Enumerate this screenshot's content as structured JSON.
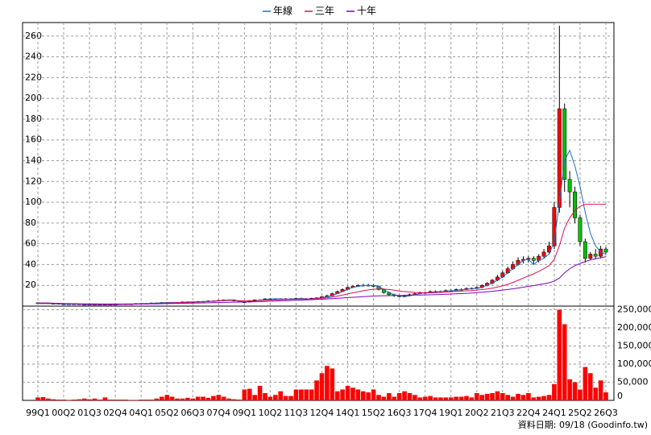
{
  "chart_data": {
    "type": "candlestick",
    "categories": [
      "99Q1",
      null,
      null,
      null,
      null,
      "00Q2",
      null,
      null,
      null,
      null,
      "01Q3",
      null,
      null,
      null,
      null,
      "02Q4",
      null,
      null,
      null,
      null,
      "04Q1",
      null,
      null,
      null,
      null,
      "05Q2",
      null,
      null,
      null,
      null,
      "06Q3",
      null,
      null,
      null,
      null,
      "07Q4",
      null,
      null,
      null,
      null,
      "09Q1",
      null,
      null,
      null,
      null,
      "10Q2",
      null,
      null,
      null,
      null,
      "11Q3",
      null,
      null,
      null,
      null,
      "12Q4",
      null,
      null,
      null,
      null,
      "14Q1",
      null,
      null,
      null,
      null,
      "15Q2",
      null,
      null,
      null,
      null,
      "16Q3",
      null,
      null,
      null,
      null,
      "17Q4",
      null,
      null,
      null,
      null,
      "19Q1",
      null,
      null,
      null,
      null,
      "20Q2",
      null,
      null,
      null,
      null,
      "21Q3",
      null,
      null,
      null,
      null,
      "22Q4",
      null,
      null,
      null,
      null,
      "24Q1",
      null,
      null,
      null,
      null,
      "25Q2",
      null,
      null,
      null,
      null,
      "26Q3"
    ],
    "open": [
      3.2,
      3,
      3,
      2.5,
      2.5,
      2,
      2,
      2,
      2,
      1.5,
      1.5,
      1.5,
      1.5,
      1.5,
      1.5,
      1.5,
      1.5,
      2,
      2,
      2,
      2.5,
      2.5,
      2.5,
      3,
      3,
      3.5,
      3.5,
      3.5,
      3.5,
      4,
      4,
      4,
      4.5,
      4.5,
      5,
      5,
      5.5,
      6,
      6,
      5,
      4,
      4,
      5,
      6,
      6,
      7,
      7,
      7,
      6.5,
      7,
      7,
      7.5,
      7,
      7,
      7.5,
      8,
      9,
      10,
      12,
      14,
      16,
      18,
      19,
      20,
      20,
      20,
      19,
      16,
      13,
      11,
      10,
      9,
      10,
      11,
      12,
      13,
      13,
      14,
      14,
      14,
      15,
      15,
      16,
      16,
      17,
      17,
      18,
      20,
      22,
      25,
      28,
      32,
      36,
      40,
      44,
      45,
      46,
      44,
      48,
      52,
      58,
      95,
      190,
      122,
      110,
      85,
      62,
      46,
      50,
      48,
      55
    ],
    "high": [
      3.5,
      3.3,
      3.3,
      2.8,
      2.8,
      2.3,
      2.3,
      2.3,
      2.3,
      1.8,
      1.8,
      1.8,
      1.8,
      1.8,
      1.8,
      1.8,
      2.3,
      2.3,
      2.3,
      2.8,
      2.9,
      2.9,
      3.4,
      3.4,
      3.9,
      3.9,
      3.9,
      3.9,
      4.4,
      4.4,
      4.4,
      4.9,
      4.9,
      5.4,
      5.4,
      5.9,
      6.4,
      6.4,
      6.4,
      5.4,
      4.6,
      5.6,
      6.6,
      6.6,
      7.6,
      7.6,
      7.6,
      7.6,
      7.6,
      7.6,
      8.1,
      8.1,
      7.6,
      8.1,
      8.6,
      9.6,
      11,
      13,
      15,
      17,
      19,
      20,
      21,
      21.5,
      21.5,
      21,
      20,
      17,
      14,
      12,
      11,
      11,
      12,
      13,
      14,
      14,
      15,
      15,
      15,
      16,
      16,
      17,
      17,
      18,
      18,
      19,
      21,
      23,
      26,
      30,
      34,
      38,
      43,
      47,
      48,
      48,
      48,
      50,
      55,
      62,
      100,
      270,
      195,
      130,
      115,
      88,
      65,
      52,
      55,
      58,
      57
    ],
    "low": [
      2.7,
      2.7,
      2.2,
      2.2,
      1.7,
      1.7,
      1.7,
      1.7,
      1.2,
      1.2,
      1.2,
      1.2,
      1.2,
      1.2,
      1.2,
      1.2,
      1.2,
      1.7,
      1.7,
      1.7,
      2.1,
      2.1,
      2.1,
      2.6,
      2.6,
      3.1,
      3.1,
      3.1,
      3.1,
      3.6,
      3.6,
      3.6,
      4.1,
      4.1,
      4.6,
      4.6,
      5.1,
      5.6,
      4.6,
      3.6,
      3.4,
      3.4,
      4.4,
      5.4,
      5.4,
      6.4,
      6.4,
      5.9,
      5.9,
      6.4,
      6.4,
      6.4,
      6.4,
      6.4,
      6.9,
      7.4,
      8.5,
      9.5,
      11.5,
      13.5,
      15.5,
      17.5,
      18.5,
      19,
      19,
      18,
      15,
      12,
      10,
      9,
      8.5,
      8.5,
      9.5,
      10.5,
      11.5,
      12,
      12.5,
      13,
      13,
      13.5,
      14,
      14.5,
      15,
      15.5,
      16,
      16.5,
      17,
      19,
      21,
      24,
      27,
      31,
      35,
      39,
      41,
      42,
      40,
      42,
      46,
      50,
      55,
      90,
      110,
      95,
      80,
      58,
      42,
      44,
      45,
      46,
      50
    ],
    "close": [
      3,
      3,
      2.5,
      2.5,
      2,
      2,
      2,
      2,
      1.5,
      1.5,
      1.5,
      1.5,
      1.5,
      1.5,
      1.5,
      1.5,
      2,
      2,
      2,
      2.5,
      2.5,
      2.5,
      3,
      3,
      3.5,
      3.5,
      3.5,
      3.5,
      4,
      4,
      4,
      4.5,
      4.5,
      5,
      5,
      5.5,
      6,
      6,
      5,
      4,
      4,
      5,
      6,
      6,
      7,
      7,
      7,
      6.5,
      7,
      7,
      7.5,
      7,
      7,
      7.5,
      8,
      9,
      10,
      12,
      14,
      16,
      18,
      19,
      20,
      20,
      20,
      19,
      16,
      13,
      11,
      10,
      9,
      10,
      11,
      12,
      13,
      13,
      14,
      14,
      14,
      15,
      15,
      16,
      16,
      17,
      17,
      18,
      20,
      22,
      25,
      28,
      32,
      36,
      40,
      44,
      45,
      46,
      44,
      48,
      52,
      58,
      95,
      190,
      122,
      110,
      85,
      62,
      46,
      50,
      48,
      55,
      52
    ],
    "up_color": "#ff0000",
    "down_color": "#00c000",
    "series": [
      {
        "name": "年線",
        "color": "#1f6fc5",
        "values": [
          3.2,
          3,
          3,
          2.5,
          2.5,
          2,
          2,
          2,
          2,
          1.5,
          1.5,
          1.5,
          1.5,
          1.5,
          1.5,
          1.5,
          1.5,
          2,
          2,
          2,
          2.5,
          2.5,
          2.5,
          3,
          3,
          3.5,
          3.5,
          3.5,
          3.5,
          4,
          4,
          4,
          4.5,
          4.5,
          5,
          5,
          5.5,
          6,
          6,
          5,
          4,
          4,
          5,
          6,
          6,
          7,
          7,
          7,
          6.5,
          7,
          7,
          7.5,
          7,
          7,
          7.5,
          8,
          9,
          10,
          12,
          14,
          16,
          18,
          19,
          20,
          20,
          20,
          19,
          16,
          13,
          11,
          10,
          9,
          10,
          11,
          12,
          13,
          13,
          14,
          14,
          14,
          15,
          15,
          16,
          16,
          17,
          17,
          18,
          20,
          22,
          25,
          28,
          32,
          36,
          40,
          44,
          45,
          40,
          44,
          46,
          50,
          62,
          100,
          140,
          150,
          135,
          115,
          90,
          70,
          58,
          52,
          50
        ]
      },
      {
        "name": "三年",
        "color": "#e0105a",
        "values": [
          3,
          3,
          3,
          2.8,
          2.7,
          2.5,
          2.4,
          2.3,
          2.1,
          2,
          1.9,
          1.8,
          1.7,
          1.6,
          1.6,
          1.6,
          1.7,
          1.7,
          1.8,
          1.9,
          2,
          2.1,
          2.3,
          2.5,
          2.7,
          2.9,
          3.1,
          3.3,
          3.5,
          3.7,
          3.9,
          4.1,
          4.3,
          4.5,
          4.7,
          5,
          5.2,
          5.4,
          5.4,
          5.3,
          5.2,
          5.2,
          5.3,
          5.4,
          5.6,
          5.8,
          6,
          6.2,
          6.4,
          6.5,
          6.7,
          6.8,
          6.9,
          7,
          7.2,
          7.5,
          8,
          8.7,
          9.6,
          10.6,
          11.7,
          12.8,
          13.8,
          14.8,
          15.6,
          16.2,
          16.5,
          16.4,
          16,
          15.3,
          14.6,
          14,
          13.6,
          13.2,
          13,
          12.8,
          12.8,
          13,
          13.2,
          13.5,
          13.8,
          14.1,
          14.4,
          14.7,
          15,
          15.4,
          15.9,
          16.5,
          17.3,
          18.3,
          19.5,
          21,
          22.8,
          24.8,
          27,
          29,
          31,
          33.5,
          36,
          39,
          45,
          58,
          75,
          85,
          92,
          96,
          98,
          98,
          98,
          98,
          98
        ]
      },
      {
        "name": "十年",
        "color": "#8000c0",
        "values": [
          2.5,
          2.5,
          2.5,
          2.5,
          2.4,
          2.4,
          2.3,
          2.3,
          2.2,
          2.2,
          2.1,
          2.1,
          2,
          2,
          2,
          2,
          2,
          2,
          2,
          2,
          2.1,
          2.1,
          2.2,
          2.2,
          2.3,
          2.4,
          2.5,
          2.6,
          2.7,
          2.8,
          2.9,
          3,
          3.1,
          3.2,
          3.3,
          3.4,
          3.6,
          3.7,
          3.8,
          3.9,
          4,
          4.1,
          4.2,
          4.3,
          4.5,
          4.7,
          4.9,
          5.1,
          5.3,
          5.4,
          5.6,
          5.8,
          6,
          6.2,
          6.4,
          6.6,
          6.9,
          7.2,
          7.5,
          7.8,
          8.2,
          8.5,
          8.8,
          9.1,
          9.4,
          9.7,
          9.9,
          10,
          10.1,
          10.2,
          10.3,
          10.4,
          10.5,
          10.6,
          10.7,
          10.8,
          10.9,
          11,
          11.2,
          11.4,
          11.6,
          11.8,
          12,
          12.3,
          12.6,
          13,
          13.4,
          13.8,
          14.3,
          14.8,
          15.4,
          16,
          16.7,
          17.4,
          18.2,
          19,
          19.8,
          20.6,
          21.5,
          22.5,
          24,
          27,
          32,
          36,
          39,
          41,
          43,
          44.5,
          45.5,
          46.5,
          47.5
        ]
      }
    ],
    "volume": {
      "color": "#ff0000",
      "axis": "y2",
      "values": [
        8000,
        9000,
        5000,
        3000,
        2000,
        2000,
        1000,
        2000,
        3000,
        5000,
        3000,
        5000,
        2000,
        8000,
        2000,
        2000,
        2000,
        2000,
        1000,
        1000,
        2000,
        2000,
        2000,
        5000,
        10000,
        15000,
        10000,
        5000,
        5000,
        7000,
        5000,
        10000,
        10000,
        7000,
        12000,
        15000,
        10000,
        5000,
        3000,
        2000,
        30000,
        32000,
        15000,
        40000,
        20000,
        10000,
        15000,
        25000,
        12000,
        12000,
        30000,
        30000,
        30000,
        30000,
        55000,
        75000,
        95000,
        88000,
        25000,
        30000,
        40000,
        35000,
        30000,
        25000,
        22000,
        30000,
        15000,
        10000,
        20000,
        10000,
        20000,
        25000,
        20000,
        15000,
        8000,
        10000,
        12000,
        8000,
        8000,
        8000,
        8000,
        10000,
        10000,
        12000,
        8000,
        20000,
        15000,
        18000,
        20000,
        25000,
        20000,
        15000,
        10000,
        18000,
        15000,
        20000,
        8000,
        10000,
        12000,
        15000,
        45000,
        250000,
        210000,
        58000,
        50000,
        30000,
        92000,
        75000,
        35000,
        55000,
        22000
      ]
    },
    "ylim": [
      0,
      273
    ],
    "yticks": [
      20,
      40,
      60,
      80,
      100,
      120,
      140,
      160,
      180,
      200,
      220,
      240,
      260
    ],
    "y2lim": [
      0,
      260000
    ],
    "y2ticks": [
      0,
      {
        "value": 50000,
        "label": "50,000"
      },
      {
        "value": 100000,
        "label": "100,000"
      },
      {
        "value": 150000,
        "label": "150,000"
      },
      {
        "value": 200000,
        "label": "200,000"
      },
      {
        "value": 250000,
        "label": "250,000"
      }
    ],
    "grid": true,
    "source": "資料日期: 09/18 (Goodinfo.tw)"
  }
}
